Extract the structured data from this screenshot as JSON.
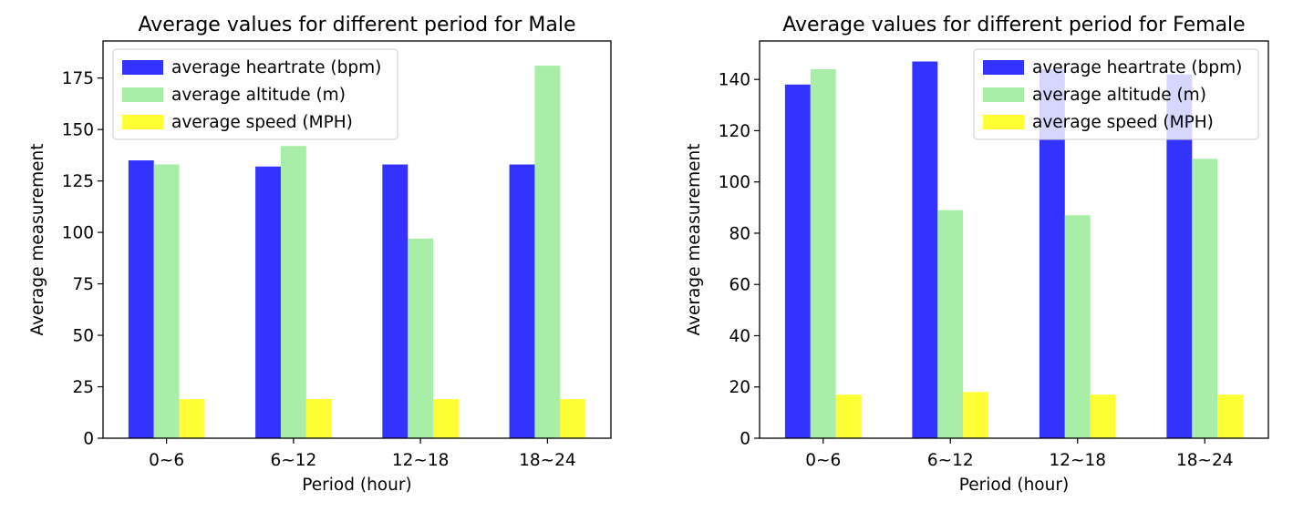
{
  "chart_data": [
    {
      "type": "bar",
      "title": "Average values for different period for Male",
      "xlabel": "Period (hour)",
      "ylabel": "Average measurement",
      "categories": [
        "0~6",
        "6~12",
        "12~18",
        "18~24"
      ],
      "ylim": [
        0,
        193
      ],
      "yticks": [
        0,
        25,
        50,
        75,
        100,
        125,
        150,
        175
      ],
      "legend_position": "top-left",
      "grid": false,
      "series": [
        {
          "name": "average heartrate (bpm)",
          "color": "#3333ff",
          "values": [
            135,
            132,
            133,
            133
          ]
        },
        {
          "name": "average altitude (m)",
          "color": "#a8eda8",
          "values": [
            133,
            142,
            97,
            181
          ]
        },
        {
          "name": "average speed (MPH)",
          "color": "#ffff33",
          "values": [
            19,
            19,
            19,
            19
          ]
        }
      ]
    },
    {
      "type": "bar",
      "title": "Average values for different period for Female",
      "xlabel": "Period (hour)",
      "ylabel": "Average measurement",
      "categories": [
        "0~6",
        "6~12",
        "12~18",
        "18~24"
      ],
      "ylim": [
        0,
        155
      ],
      "yticks": [
        0,
        20,
        40,
        60,
        80,
        100,
        120,
        140
      ],
      "legend_position": "top-right",
      "grid": false,
      "series": [
        {
          "name": "average heartrate (bpm)",
          "color": "#3333ff",
          "values": [
            138,
            147,
            144,
            142
          ]
        },
        {
          "name": "average altitude (m)",
          "color": "#a8eda8",
          "values": [
            144,
            89,
            87,
            109
          ]
        },
        {
          "name": "average speed (MPH)",
          "color": "#ffff33",
          "values": [
            17,
            18,
            17,
            17
          ]
        }
      ]
    }
  ]
}
